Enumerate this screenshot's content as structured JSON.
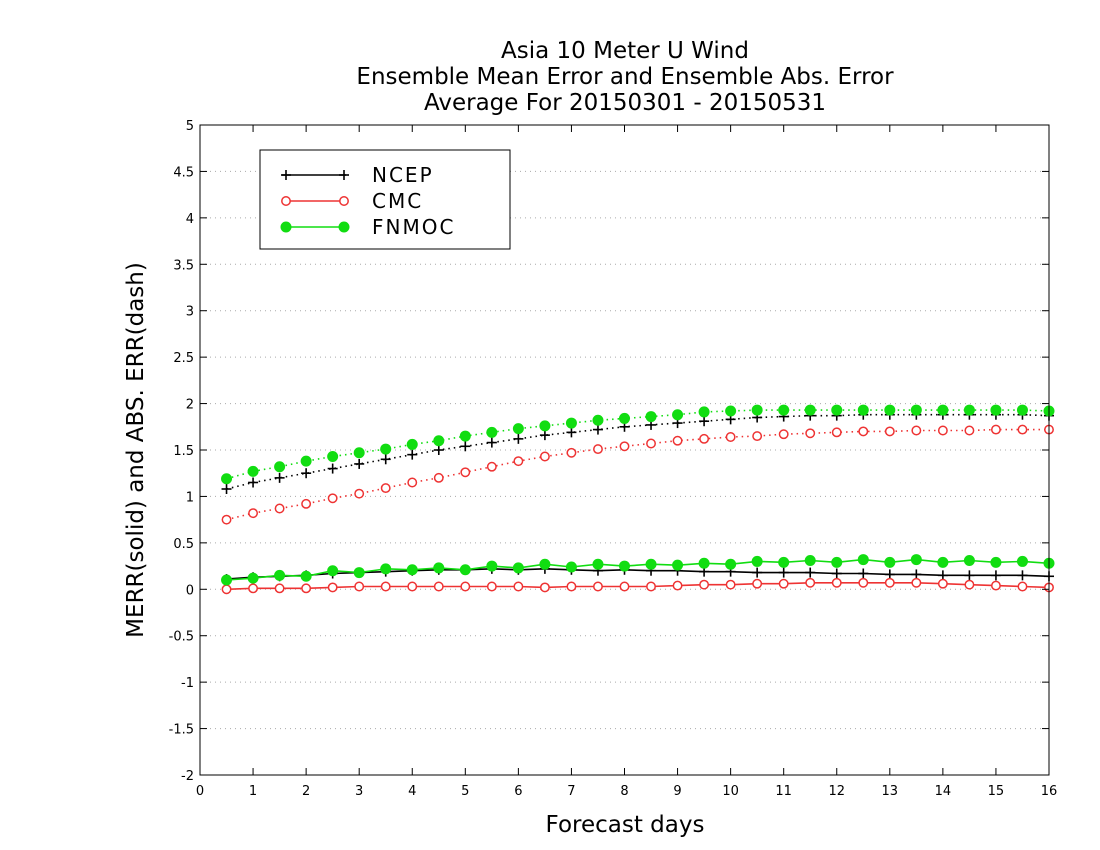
{
  "chart_data": {
    "type": "line",
    "title": [
      "Asia 10 Meter U Wind",
      "Ensemble Mean Error and Ensemble Abs. Error",
      "Average For 20150301 - 20150531"
    ],
    "xlabel": "Forecast days",
    "ylabel": "MERR(solid) and ABS. ERR(dash)",
    "xlim": [
      0,
      16
    ],
    "ylim": [
      -2,
      5
    ],
    "xticks": [
      0,
      1,
      2,
      3,
      4,
      5,
      6,
      7,
      8,
      9,
      10,
      11,
      12,
      13,
      14,
      15,
      16
    ],
    "yticks": [
      5,
      4.5,
      4,
      3.5,
      3,
      2.5,
      2,
      1.5,
      1,
      0.5,
      0,
      -0.5,
      -1,
      -1.5,
      -2
    ],
    "grid": "horizontal dotted",
    "legend_position": "top-left",
    "x": [
      0.5,
      1,
      1.5,
      2,
      2.5,
      3,
      3.5,
      4,
      4.5,
      5,
      5.5,
      6,
      6.5,
      7,
      7.5,
      8,
      8.5,
      9,
      9.5,
      10,
      10.5,
      11,
      11.5,
      12,
      12.5,
      13,
      13.5,
      14,
      14.5,
      15,
      15.5,
      16
    ],
    "series": [
      {
        "name": "NCEP",
        "color": "#000000",
        "marker": "plus",
        "mean_error": [
          0.11,
          0.13,
          0.14,
          0.15,
          0.17,
          0.18,
          0.19,
          0.2,
          0.21,
          0.21,
          0.22,
          0.21,
          0.22,
          0.21,
          0.2,
          0.21,
          0.2,
          0.2,
          0.19,
          0.19,
          0.18,
          0.18,
          0.18,
          0.17,
          0.17,
          0.16,
          0.16,
          0.15,
          0.15,
          0.15,
          0.15,
          0.14
        ],
        "abs_error": [
          1.08,
          1.15,
          1.2,
          1.25,
          1.3,
          1.35,
          1.4,
          1.45,
          1.5,
          1.54,
          1.58,
          1.62,
          1.66,
          1.69,
          1.72,
          1.75,
          1.77,
          1.79,
          1.81,
          1.83,
          1.85,
          1.86,
          1.87,
          1.87,
          1.88,
          1.88,
          1.88,
          1.88,
          1.88,
          1.88,
          1.88,
          1.87
        ]
      },
      {
        "name": "CMC",
        "color": "#ee3333",
        "marker": "open-circle",
        "mean_error": [
          0.0,
          0.01,
          0.01,
          0.01,
          0.02,
          0.03,
          0.03,
          0.03,
          0.03,
          0.03,
          0.03,
          0.03,
          0.02,
          0.03,
          0.03,
          0.03,
          0.03,
          0.04,
          0.05,
          0.05,
          0.06,
          0.06,
          0.07,
          0.07,
          0.07,
          0.07,
          0.07,
          0.06,
          0.05,
          0.04,
          0.03,
          0.02
        ],
        "abs_error": [
          0.75,
          0.82,
          0.87,
          0.92,
          0.98,
          1.03,
          1.09,
          1.15,
          1.2,
          1.26,
          1.32,
          1.38,
          1.43,
          1.47,
          1.51,
          1.54,
          1.57,
          1.6,
          1.62,
          1.64,
          1.65,
          1.67,
          1.68,
          1.69,
          1.7,
          1.7,
          1.71,
          1.71,
          1.71,
          1.72,
          1.72,
          1.72
        ]
      },
      {
        "name": "FNMOC",
        "color": "#11dd11",
        "marker": "filled-circle",
        "mean_error": [
          0.1,
          0.12,
          0.15,
          0.14,
          0.2,
          0.18,
          0.22,
          0.21,
          0.23,
          0.21,
          0.25,
          0.23,
          0.27,
          0.24,
          0.27,
          0.25,
          0.27,
          0.26,
          0.28,
          0.27,
          0.3,
          0.29,
          0.31,
          0.29,
          0.32,
          0.29,
          0.32,
          0.29,
          0.31,
          0.29,
          0.3,
          0.28
        ],
        "abs_error": [
          1.19,
          1.27,
          1.32,
          1.38,
          1.43,
          1.47,
          1.51,
          1.56,
          1.6,
          1.65,
          1.69,
          1.73,
          1.76,
          1.79,
          1.82,
          1.84,
          1.86,
          1.88,
          1.91,
          1.92,
          1.93,
          1.93,
          1.93,
          1.93,
          1.93,
          1.93,
          1.93,
          1.93,
          1.93,
          1.93,
          1.93,
          1.92
        ]
      }
    ]
  }
}
